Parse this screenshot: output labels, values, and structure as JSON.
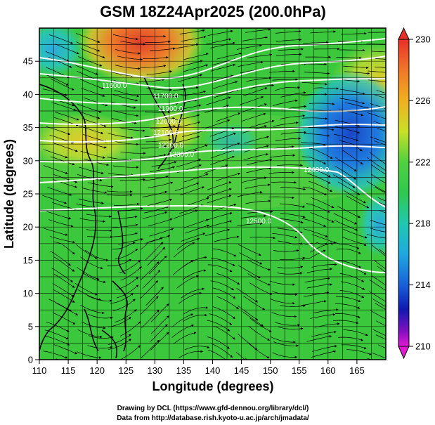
{
  "title": "GSM 18Z24Apr2025 (200.0hPa)",
  "xlabel": "Longitude (degrees)",
  "ylabel": "Latitude  (degrees)",
  "x_ticks": [
    "110",
    "115",
    "120",
    "125",
    "130",
    "135",
    "140",
    "145",
    "150",
    "155",
    "160",
    "165"
  ],
  "y_ticks": [
    "0",
    "5",
    "10",
    "15",
    "20",
    "25",
    "30",
    "35",
    "40",
    "45"
  ],
  "colorbar_ticks": [
    "230",
    "226",
    "222",
    "218",
    "214",
    "210"
  ],
  "credits": {
    "line1": "Drawing by DCL (https://www.gfd-dennou.org/library/dcl/)",
    "line2": "Data from http://database.rish.kyoto-u.ac.jp/arch/jmadata/"
  },
  "contour_labels": [
    "11600.0",
    "11700.0",
    "11900.0",
    "12000.0",
    "12100.0",
    "12200.0",
    "12300.0",
    "12400.0",
    "12500.0"
  ],
  "colors": {
    "warm": "#e0402a",
    "orange": "#f0a020",
    "yellow": "#d8e030",
    "green": "#3cc83c",
    "cyan": "#20c8c8",
    "blue": "#1464dc",
    "navy": "#0a1aa0",
    "magenta": "#e01ad2"
  },
  "chart_data": {
    "type": "heatmap",
    "xlim": [
      110,
      170
    ],
    "ylim": [
      0,
      50
    ],
    "colorbar_range": [
      210,
      230
    ],
    "overlays": [
      "streamlines",
      "geopotential height contours",
      "coastlines",
      "grid"
    ]
  }
}
